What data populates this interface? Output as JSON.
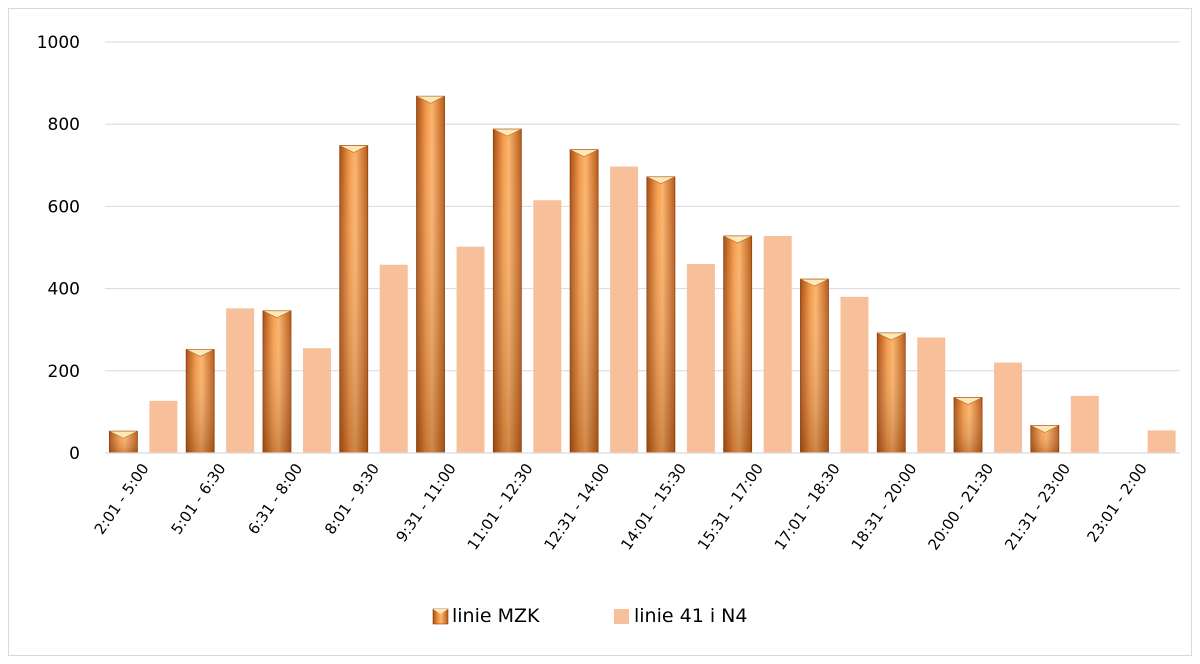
{
  "chart_data": {
    "type": "bar",
    "categories": [
      "2:01 - 5:00",
      "5:01 - 6:30",
      "6:31 - 8:00",
      "8:01 - 9:30",
      "9:31 - 11:00",
      "11:01 - 12:30",
      "12:31 - 14:00",
      "14:01 - 15:30",
      "15:31 - 17:00",
      "17:01 - 18:30",
      "18:31 - 20:00",
      "20:00 - 21:30",
      "21:31 - 23:00",
      "23:01 - 2:00"
    ],
    "series": [
      {
        "name": "linie MZK",
        "values": [
          53,
          252,
          346,
          748,
          868,
          788,
          738,
          672,
          528,
          423,
          292,
          135,
          67,
          0
        ]
      },
      {
        "name": "linie 41 i N4",
        "values": [
          127,
          352,
          255,
          458,
          502,
          615,
          697,
          460,
          528,
          380,
          281,
          220,
          139,
          55
        ]
      }
    ],
    "ylim": [
      0,
      1000
    ],
    "yticks": [
      0,
      200,
      400,
      600,
      800,
      1000
    ],
    "grid": true,
    "legend_position": "bottom",
    "colors": {
      "linie MZK": "#e07b2a",
      "linie 41 i N4": "#f8c09a",
      "grid": "#d9d9d9"
    }
  }
}
